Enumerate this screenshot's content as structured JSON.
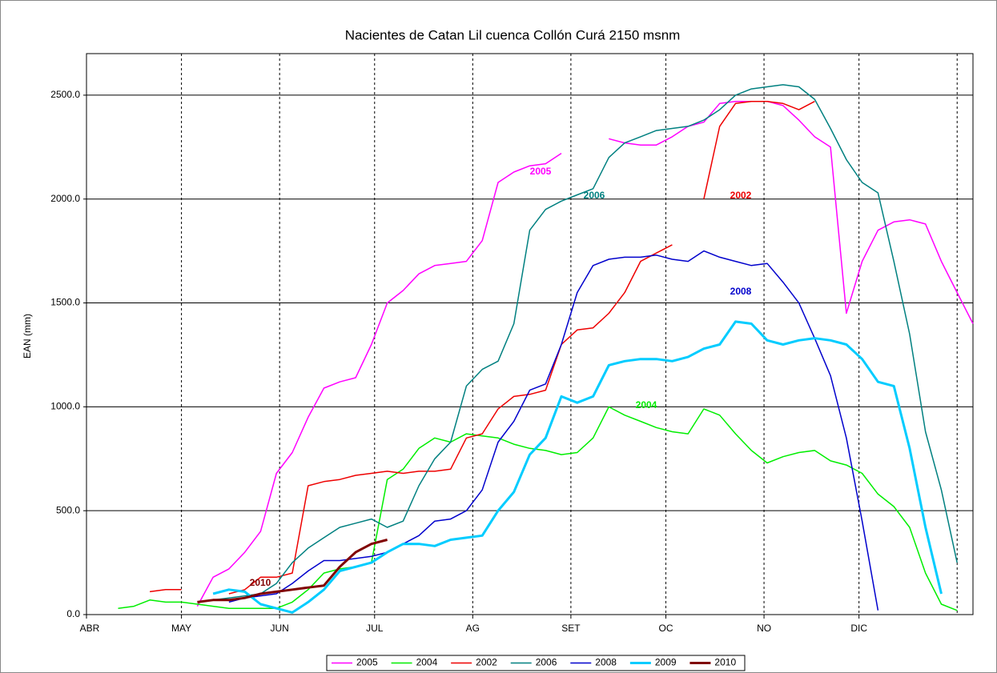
{
  "chart_data": {
    "type": "line",
    "title": "Nacientes de Catan Lil cuenca Collón Curá 2150 msnm",
    "y_label": "EAN (mm)",
    "xlim": [
      0,
      280
    ],
    "xticks": [
      {
        "value": 0,
        "label": "ABR"
      },
      {
        "value": 30,
        "label": "MAY"
      },
      {
        "value": 61,
        "label": "JUN"
      },
      {
        "value": 91,
        "label": "JUL"
      },
      {
        "value": 122,
        "label": "AG"
      },
      {
        "value": 153,
        "label": "SET"
      },
      {
        "value": 183,
        "label": "OC"
      },
      {
        "value": 214,
        "label": "NO"
      },
      {
        "value": 244,
        "label": "DIC"
      }
    ],
    "xgrid": [
      30,
      61,
      91,
      122,
      153,
      183,
      214,
      244,
      275
    ],
    "ylim": [
      0,
      2700
    ],
    "yticks": [
      {
        "value": 0,
        "label": "0.0"
      },
      {
        "value": 500,
        "label": "500.0"
      },
      {
        "value": 1000,
        "label": "1000.0"
      },
      {
        "value": 1500,
        "label": "1500.0"
      },
      {
        "value": 2000,
        "label": "2000.0"
      },
      {
        "value": 2500,
        "label": "2500.0"
      }
    ],
    "grid": true,
    "legend": "bottom",
    "x": [
      10,
      15,
      20,
      25,
      30,
      35,
      40,
      45,
      50,
      55,
      60,
      65,
      70,
      75,
      80,
      85,
      90,
      95,
      100,
      105,
      110,
      115,
      120,
      125,
      130,
      135,
      140,
      145,
      150,
      155,
      160,
      165,
      170,
      175,
      180,
      185,
      190,
      195,
      200,
      205,
      210,
      215,
      220,
      225,
      230,
      235,
      240,
      245,
      250,
      255,
      260,
      265,
      270,
      275,
      280
    ],
    "series": [
      {
        "name": "2005",
        "color": "#ff00ff",
        "width": 1.5,
        "values": [
          null,
          null,
          null,
          null,
          null,
          40,
          180,
          220,
          300,
          400,
          680,
          780,
          950,
          1090,
          1120,
          1140,
          1300,
          1500,
          1560,
          1640,
          1680,
          1690,
          1700,
          1800,
          2080,
          2130,
          2160,
          2170,
          2220,
          null,
          null,
          2290,
          2270,
          2260,
          2260,
          2300,
          2350,
          2370,
          2460,
          2470,
          2470,
          2470,
          2450,
          2380,
          2300,
          2250,
          1450,
          1700,
          1850,
          1890,
          1900,
          1880,
          1700,
          1550,
          1400
        ]
      },
      {
        "name": "2004",
        "color": "#00ee00",
        "width": 1.5,
        "values": [
          30,
          40,
          70,
          60,
          60,
          50,
          40,
          30,
          30,
          30,
          30,
          60,
          120,
          200,
          220,
          230,
          250,
          650,
          700,
          800,
          850,
          830,
          870,
          860,
          850,
          820,
          800,
          790,
          770,
          780,
          850,
          1000,
          960,
          930,
          900,
          880,
          870,
          990,
          960,
          870,
          790,
          730,
          760,
          780,
          790,
          740,
          720,
          680,
          580,
          520,
          420,
          200,
          50,
          20,
          null
        ]
      },
      {
        "name": "2002",
        "color": "#ee0000",
        "width": 1.5,
        "values": [
          80,
          null,
          110,
          120,
          120,
          null,
          null,
          100,
          120,
          180,
          180,
          200,
          620,
          640,
          650,
          670,
          680,
          690,
          680,
          690,
          690,
          700,
          850,
          870,
          990,
          1050,
          1060,
          1080,
          1300,
          1370,
          1380,
          1450,
          1550,
          1700,
          1740,
          1780,
          null,
          2000,
          2350,
          2460,
          2470,
          2470,
          2460,
          2430,
          2470,
          null,
          null,
          null,
          null,
          null,
          null,
          null,
          null,
          null,
          null
        ]
      },
      {
        "name": "2006",
        "color": "#008080",
        "width": 1.5,
        "values": [
          null,
          null,
          null,
          null,
          null,
          null,
          70,
          80,
          90,
          100,
          150,
          250,
          320,
          370,
          420,
          440,
          460,
          420,
          450,
          620,
          750,
          830,
          1100,
          1180,
          1220,
          1400,
          1850,
          1950,
          1990,
          2020,
          2050,
          2200,
          2270,
          2300,
          2330,
          2340,
          2350,
          2380,
          2430,
          2500,
          2530,
          2540,
          2550,
          2540,
          2480,
          2340,
          2190,
          2080,
          2030,
          1700,
          1350,
          880,
          600,
          250,
          null
        ]
      },
      {
        "name": "2008",
        "color": "#0000cc",
        "width": 1.5,
        "values": [
          null,
          null,
          null,
          null,
          null,
          null,
          null,
          60,
          80,
          90,
          100,
          150,
          210,
          260,
          260,
          270,
          280,
          300,
          340,
          380,
          450,
          460,
          500,
          600,
          830,
          930,
          1080,
          1110,
          1300,
          1550,
          1680,
          1710,
          1720,
          1720,
          1730,
          1710,
          1700,
          1750,
          1720,
          1700,
          1680,
          1690,
          1600,
          1500,
          1330,
          1150,
          850,
          450,
          20,
          null,
          null,
          null,
          null,
          null,
          null
        ]
      },
      {
        "name": "2009",
        "color": "#00ccff",
        "width": 3,
        "values": [
          null,
          null,
          null,
          null,
          null,
          null,
          100,
          120,
          110,
          50,
          30,
          10,
          60,
          120,
          210,
          230,
          250,
          300,
          340,
          340,
          330,
          360,
          370,
          380,
          500,
          590,
          770,
          850,
          1050,
          1020,
          1050,
          1200,
          1220,
          1230,
          1230,
          1220,
          1240,
          1280,
          1300,
          1410,
          1400,
          1320,
          1300,
          1320,
          1330,
          1320,
          1300,
          1230,
          1120,
          1100,
          800,
          420,
          100,
          null,
          null
        ]
      },
      {
        "name": "2010",
        "color": "#800000",
        "width": 3,
        "values": [
          null,
          null,
          null,
          null,
          null,
          60,
          70,
          70,
          80,
          100,
          110,
          120,
          130,
          140,
          230,
          300,
          340,
          360,
          null,
          null,
          null,
          null,
          null,
          null,
          null,
          null,
          null,
          null,
          null,
          null,
          null,
          null,
          null,
          null,
          null,
          null,
          null,
          null,
          null,
          null,
          null,
          null,
          null,
          null,
          null,
          null,
          null,
          null,
          null,
          null,
          null,
          null,
          null,
          null,
          null
        ]
      }
    ],
    "annotations": [
      {
        "text": "2005",
        "color": "#ff00ff"
      },
      {
        "text": "2006",
        "color": "#008080"
      },
      {
        "text": "2002",
        "color": "#ee0000"
      },
      {
        "text": "2008",
        "color": "#0000cc"
      },
      {
        "text": "2004",
        "color": "#00ee00"
      },
      {
        "text": "2010",
        "color": "#800000"
      }
    ]
  }
}
